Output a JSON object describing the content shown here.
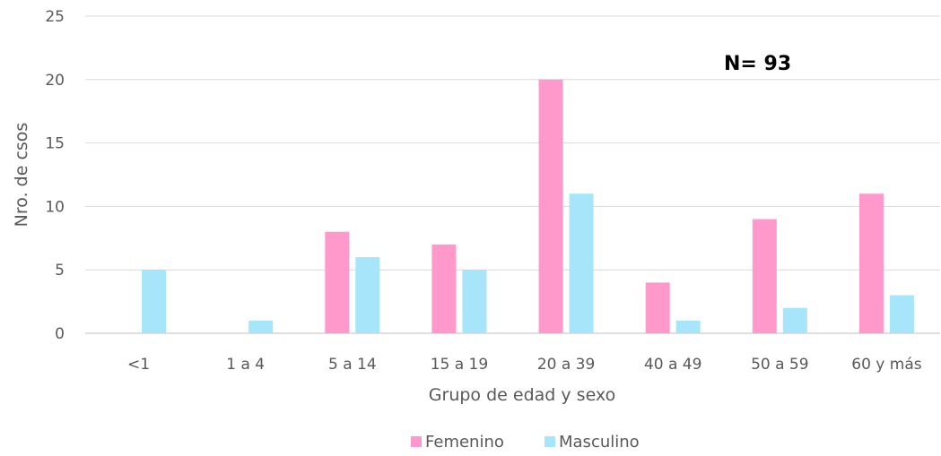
{
  "chart_data": {
    "type": "bar",
    "categories": [
      "<1",
      "1 a 4",
      "5 a 14",
      "15 a 19",
      "20 a 39",
      "40 a 49",
      "50 a 59",
      "60 y más"
    ],
    "series": [
      {
        "name": "Femenino",
        "color": "#ff99cc",
        "values": [
          0,
          0,
          8,
          7,
          20,
          4,
          9,
          11
        ]
      },
      {
        "name": "Masculino",
        "color": "#a6e5fa",
        "values": [
          5,
          1,
          6,
          5,
          11,
          1,
          2,
          3
        ]
      }
    ],
    "title": "",
    "xlabel": "Grupo de edad y sexo",
    "ylabel": "Nro. de csos",
    "ylim": [
      0,
      25
    ],
    "yticks": [
      0,
      5,
      10,
      15,
      20,
      25
    ],
    "grid": true,
    "legend": "bottom",
    "annotation": "N= 93"
  }
}
